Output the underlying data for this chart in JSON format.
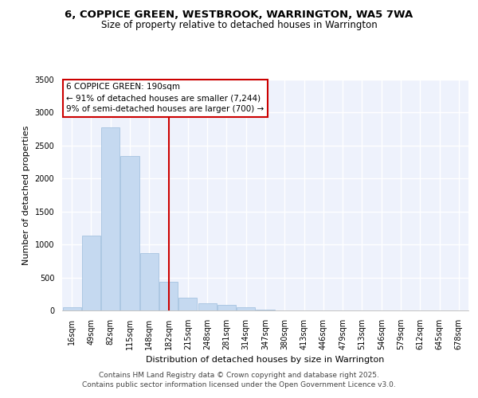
{
  "title_line1": "6, COPPICE GREEN, WESTBROOK, WARRINGTON, WA5 7WA",
  "title_line2": "Size of property relative to detached houses in Warrington",
  "xlabel": "Distribution of detached houses by size in Warrington",
  "ylabel": "Number of detached properties",
  "categories": [
    "16sqm",
    "49sqm",
    "82sqm",
    "115sqm",
    "148sqm",
    "182sqm",
    "215sqm",
    "248sqm",
    "281sqm",
    "314sqm",
    "347sqm",
    "380sqm",
    "413sqm",
    "446sqm",
    "479sqm",
    "513sqm",
    "546sqm",
    "579sqm",
    "612sqm",
    "645sqm",
    "678sqm"
  ],
  "values": [
    50,
    1130,
    2770,
    2340,
    870,
    435,
    190,
    110,
    90,
    45,
    10,
    5,
    2,
    0,
    0,
    0,
    0,
    0,
    0,
    0,
    0
  ],
  "bar_color": "#c5d9f0",
  "bar_edgecolor": "#9bbcdc",
  "background_color": "#eef2fc",
  "grid_color": "#ffffff",
  "annotation_line1": "6 COPPICE GREEN: 190sqm",
  "annotation_line2": "← 91% of detached houses are smaller (7,244)",
  "annotation_line3": "9% of semi-detached houses are larger (700) →",
  "vline_x_index": 5,
  "vline_color": "#cc0000",
  "box_edgecolor": "#cc0000",
  "ylim": [
    0,
    3500
  ],
  "yticks": [
    0,
    500,
    1000,
    1500,
    2000,
    2500,
    3000,
    3500
  ],
  "footer_line1": "Contains HM Land Registry data © Crown copyright and database right 2025.",
  "footer_line2": "Contains public sector information licensed under the Open Government Licence v3.0.",
  "title_fontsize": 9.5,
  "subtitle_fontsize": 8.5,
  "tick_fontsize": 7,
  "ylabel_fontsize": 8,
  "xlabel_fontsize": 8,
  "annotation_fontsize": 7.5,
  "footer_fontsize": 6.5
}
